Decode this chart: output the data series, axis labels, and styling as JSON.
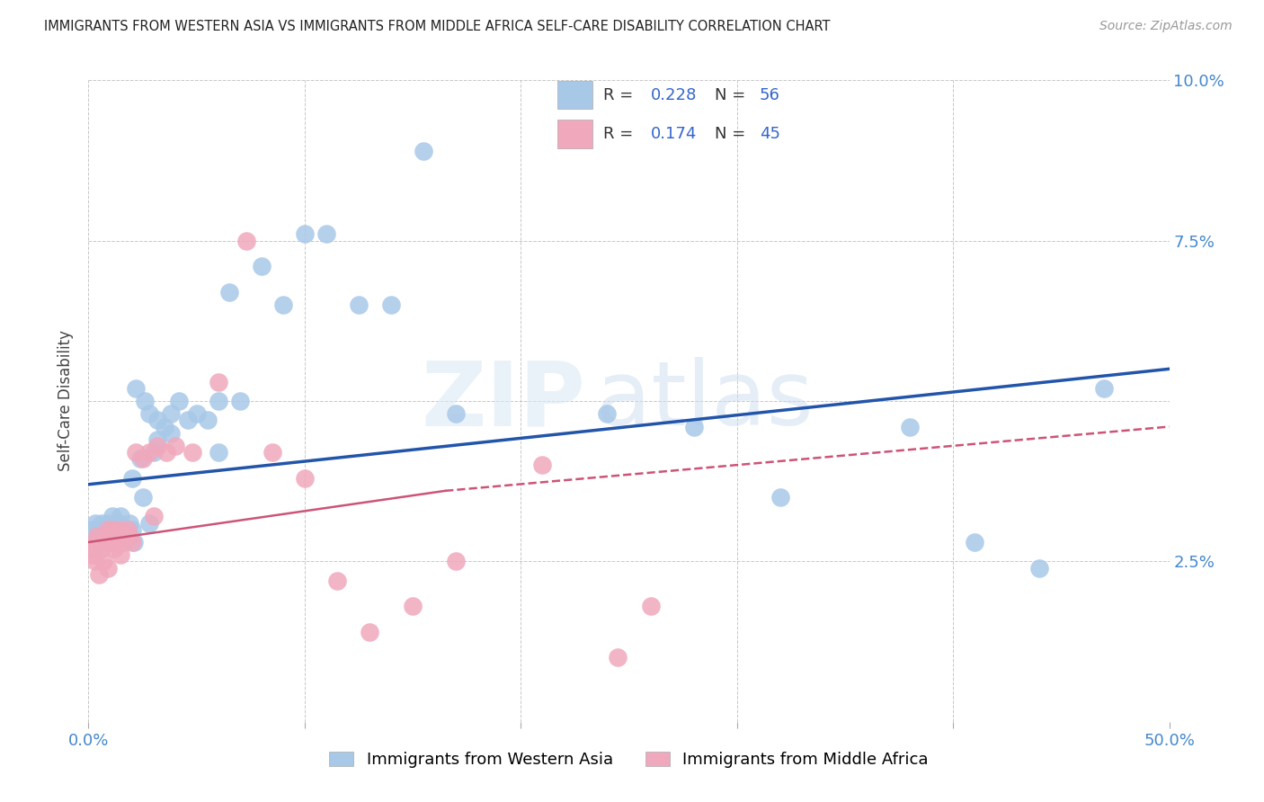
{
  "title": "IMMIGRANTS FROM WESTERN ASIA VS IMMIGRANTS FROM MIDDLE AFRICA SELF-CARE DISABILITY CORRELATION CHART",
  "source": "Source: ZipAtlas.com",
  "ylabel": "Self-Care Disability",
  "xlim": [
    0.0,
    0.5
  ],
  "ylim": [
    0.0,
    0.1
  ],
  "series1_label": "Immigrants from Western Asia",
  "series1_R": "0.228",
  "series1_N": "56",
  "series1_color": "#a8c8e8",
  "series1_line_color": "#2255aa",
  "series2_label": "Immigrants from Middle Africa",
  "series2_R": "0.174",
  "series2_N": "45",
  "series2_color": "#f0a8bc",
  "series2_line_color": "#cc5577",
  "blue_x": [
    0.002,
    0.003,
    0.004,
    0.005,
    0.006,
    0.007,
    0.008,
    0.009,
    0.01,
    0.011,
    0.012,
    0.013,
    0.014,
    0.015,
    0.016,
    0.017,
    0.018,
    0.019,
    0.02,
    0.021,
    0.022,
    0.024,
    0.026,
    0.028,
    0.03,
    0.032,
    0.035,
    0.038,
    0.042,
    0.046,
    0.05,
    0.055,
    0.06,
    0.065,
    0.07,
    0.08,
    0.09,
    0.1,
    0.11,
    0.125,
    0.14,
    0.155,
    0.17,
    0.24,
    0.28,
    0.32,
    0.38,
    0.41,
    0.44,
    0.47,
    0.02,
    0.025,
    0.028,
    0.032,
    0.038,
    0.06
  ],
  "blue_y": [
    0.03,
    0.031,
    0.029,
    0.03,
    0.031,
    0.03,
    0.029,
    0.031,
    0.028,
    0.032,
    0.03,
    0.028,
    0.031,
    0.032,
    0.03,
    0.029,
    0.03,
    0.031,
    0.03,
    0.028,
    0.052,
    0.041,
    0.05,
    0.048,
    0.042,
    0.047,
    0.046,
    0.048,
    0.05,
    0.047,
    0.048,
    0.047,
    0.05,
    0.067,
    0.05,
    0.071,
    0.065,
    0.076,
    0.076,
    0.065,
    0.065,
    0.089,
    0.048,
    0.048,
    0.046,
    0.035,
    0.046,
    0.028,
    0.024,
    0.052,
    0.038,
    0.035,
    0.031,
    0.044,
    0.045,
    0.042
  ],
  "pink_x": [
    0.001,
    0.002,
    0.003,
    0.004,
    0.005,
    0.006,
    0.007,
    0.008,
    0.009,
    0.01,
    0.011,
    0.012,
    0.013,
    0.014,
    0.015,
    0.016,
    0.017,
    0.018,
    0.019,
    0.02,
    0.022,
    0.025,
    0.028,
    0.032,
    0.036,
    0.04,
    0.048,
    0.06,
    0.073,
    0.085,
    0.1,
    0.115,
    0.13,
    0.15,
    0.17,
    0.21,
    0.245,
    0.26,
    0.003,
    0.005,
    0.007,
    0.009,
    0.012,
    0.015,
    0.03
  ],
  "pink_y": [
    0.027,
    0.026,
    0.028,
    0.029,
    0.028,
    0.027,
    0.028,
    0.029,
    0.03,
    0.028,
    0.03,
    0.029,
    0.028,
    0.029,
    0.03,
    0.028,
    0.029,
    0.03,
    0.029,
    0.028,
    0.042,
    0.041,
    0.042,
    0.043,
    0.042,
    0.043,
    0.042,
    0.053,
    0.075,
    0.042,
    0.038,
    0.022,
    0.014,
    0.018,
    0.025,
    0.04,
    0.01,
    0.018,
    0.025,
    0.023,
    0.025,
    0.024,
    0.027,
    0.026,
    0.032
  ],
  "blue_line": [
    0.0,
    0.5,
    0.037,
    0.055
  ],
  "pink_line_solid": [
    0.0,
    0.165,
    0.028,
    0.036
  ],
  "pink_line_dash": [
    0.165,
    0.5,
    0.036,
    0.046
  ]
}
